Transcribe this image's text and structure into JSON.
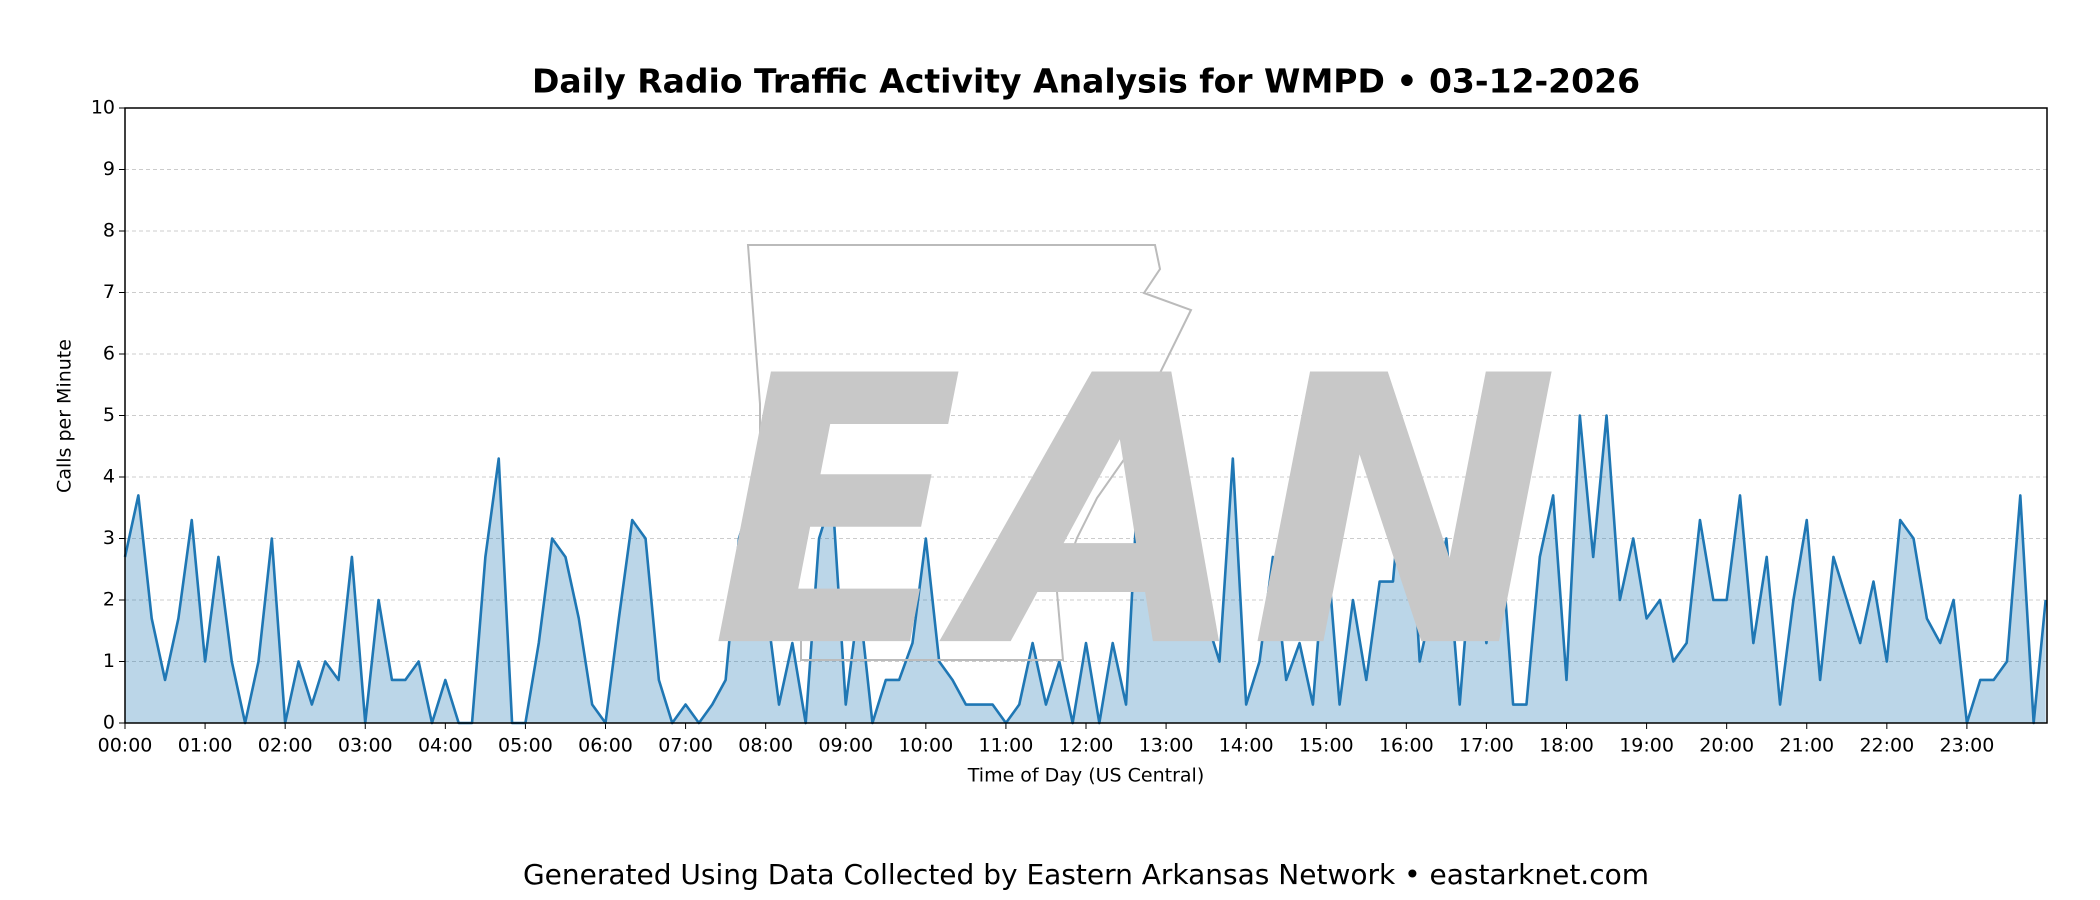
{
  "chart_data": {
    "type": "line",
    "title": "Daily Radio Traffic Activity Analysis for WMPD • 03-12-2026",
    "xlabel": "Time of Day (US Central)",
    "ylabel": "Calls per Minute",
    "footer": "Generated Using Data Collected by Eastern Arkansas Network • eastarknet.com",
    "watermark": "EAN",
    "x": [
      0,
      10,
      20,
      30,
      40,
      50,
      60,
      70,
      80,
      90,
      100,
      110,
      120,
      130,
      140,
      150,
      160,
      170,
      180,
      190,
      200,
      210,
      220,
      230,
      240,
      250,
      260,
      270,
      280,
      290,
      300,
      310,
      320,
      330,
      340,
      350,
      360,
      370,
      380,
      390,
      400,
      410,
      420,
      430,
      440,
      450,
      460,
      470,
      480,
      490,
      500,
      510,
      520,
      530,
      540,
      550,
      560,
      570,
      580,
      590,
      600,
      610,
      620,
      630,
      640,
      650,
      660,
      670,
      680,
      690,
      700,
      710,
      720,
      730,
      740,
      750,
      760,
      770,
      780,
      790,
      800,
      810,
      820,
      830,
      840,
      850,
      860,
      870,
      880,
      890,
      900,
      910,
      920,
      930,
      940,
      950,
      960,
      970,
      980,
      990,
      1000,
      1010,
      1020,
      1030,
      1040,
      1050,
      1060,
      1070,
      1080,
      1090,
      1100,
      1110,
      1120,
      1130,
      1140,
      1150,
      1160,
      1170,
      1180,
      1190,
      1200,
      1210,
      1220,
      1230,
      1240,
      1250,
      1260,
      1270,
      1280,
      1290,
      1300,
      1310,
      1320,
      1330,
      1340,
      1350,
      1360,
      1370,
      1380,
      1390,
      1400,
      1410,
      1420,
      1430,
      1439
    ],
    "series": [
      {
        "color": "#1f77b4",
        "values": [
          2.7,
          3.7,
          1.7,
          0.7,
          1.7,
          3.3,
          1,
          2.7,
          1,
          0,
          1,
          3,
          0,
          1,
          0.3,
          1,
          0.7,
          2.7,
          0,
          2,
          0.7,
          0.7,
          1,
          0,
          0.7,
          0,
          0,
          2.7,
          4.3,
          0,
          0,
          1.3,
          3,
          2.7,
          1.7,
          0.3,
          0,
          1.7,
          3.3,
          3,
          0.7,
          0,
          0.3,
          0,
          0.3,
          0.7,
          3,
          3.7,
          2,
          0.3,
          1.3,
          0,
          3,
          3.7,
          0.3,
          2,
          0,
          0.7,
          0.7,
          1.3,
          3,
          1,
          0.7,
          0.3,
          0.3,
          0.3,
          0,
          0.3,
          1.3,
          0.3,
          1,
          0,
          1.3,
          0,
          1.3,
          0.3,
          4.3,
          4.3,
          2,
          3,
          1.7,
          1.7,
          1,
          4.3,
          0.3,
          1,
          2.7,
          0.7,
          1.3,
          0.3,
          3,
          0.3,
          2,
          0.7,
          2.3,
          2.3,
          4.7,
          1,
          2,
          3,
          0.3,
          3,
          1.3,
          3.3,
          0.3,
          0.3,
          2.7,
          3.7,
          0.7,
          5,
          2.7,
          5,
          2,
          3,
          1.7,
          2,
          1,
          1.3,
          3.3,
          2,
          2,
          3.7,
          1.3,
          2.7,
          0.3,
          2,
          3.3,
          0.7,
          2.7,
          2,
          1.3,
          2.3,
          1,
          3.3,
          3,
          1.7,
          1.3,
          2,
          0,
          0.7,
          0.7,
          1,
          3.7,
          0,
          2
        ]
      }
    ],
    "xlim": [
      0,
      1440
    ],
    "ylim": [
      0,
      10
    ],
    "xticks": [
      {
        "value": 0,
        "label": "00:00"
      },
      {
        "value": 60,
        "label": "01:00"
      },
      {
        "value": 120,
        "label": "02:00"
      },
      {
        "value": 180,
        "label": "03:00"
      },
      {
        "value": 240,
        "label": "04:00"
      },
      {
        "value": 300,
        "label": "05:00"
      },
      {
        "value": 360,
        "label": "06:00"
      },
      {
        "value": 420,
        "label": "07:00"
      },
      {
        "value": 480,
        "label": "08:00"
      },
      {
        "value": 540,
        "label": "09:00"
      },
      {
        "value": 600,
        "label": "10:00"
      },
      {
        "value": 660,
        "label": "11:00"
      },
      {
        "value": 720,
        "label": "12:00"
      },
      {
        "value": 780,
        "label": "13:00"
      },
      {
        "value": 840,
        "label": "14:00"
      },
      {
        "value": 900,
        "label": "15:00"
      },
      {
        "value": 960,
        "label": "16:00"
      },
      {
        "value": 1020,
        "label": "17:00"
      },
      {
        "value": 1080,
        "label": "18:00"
      },
      {
        "value": 1140,
        "label": "19:00"
      },
      {
        "value": 1200,
        "label": "20:00"
      },
      {
        "value": 1260,
        "label": "21:00"
      },
      {
        "value": 1320,
        "label": "22:00"
      },
      {
        "value": 1380,
        "label": "23:00"
      }
    ],
    "yticks": [
      0,
      1,
      2,
      3,
      4,
      5,
      6,
      7,
      8,
      9,
      10
    ],
    "grid": true,
    "fill": true
  }
}
